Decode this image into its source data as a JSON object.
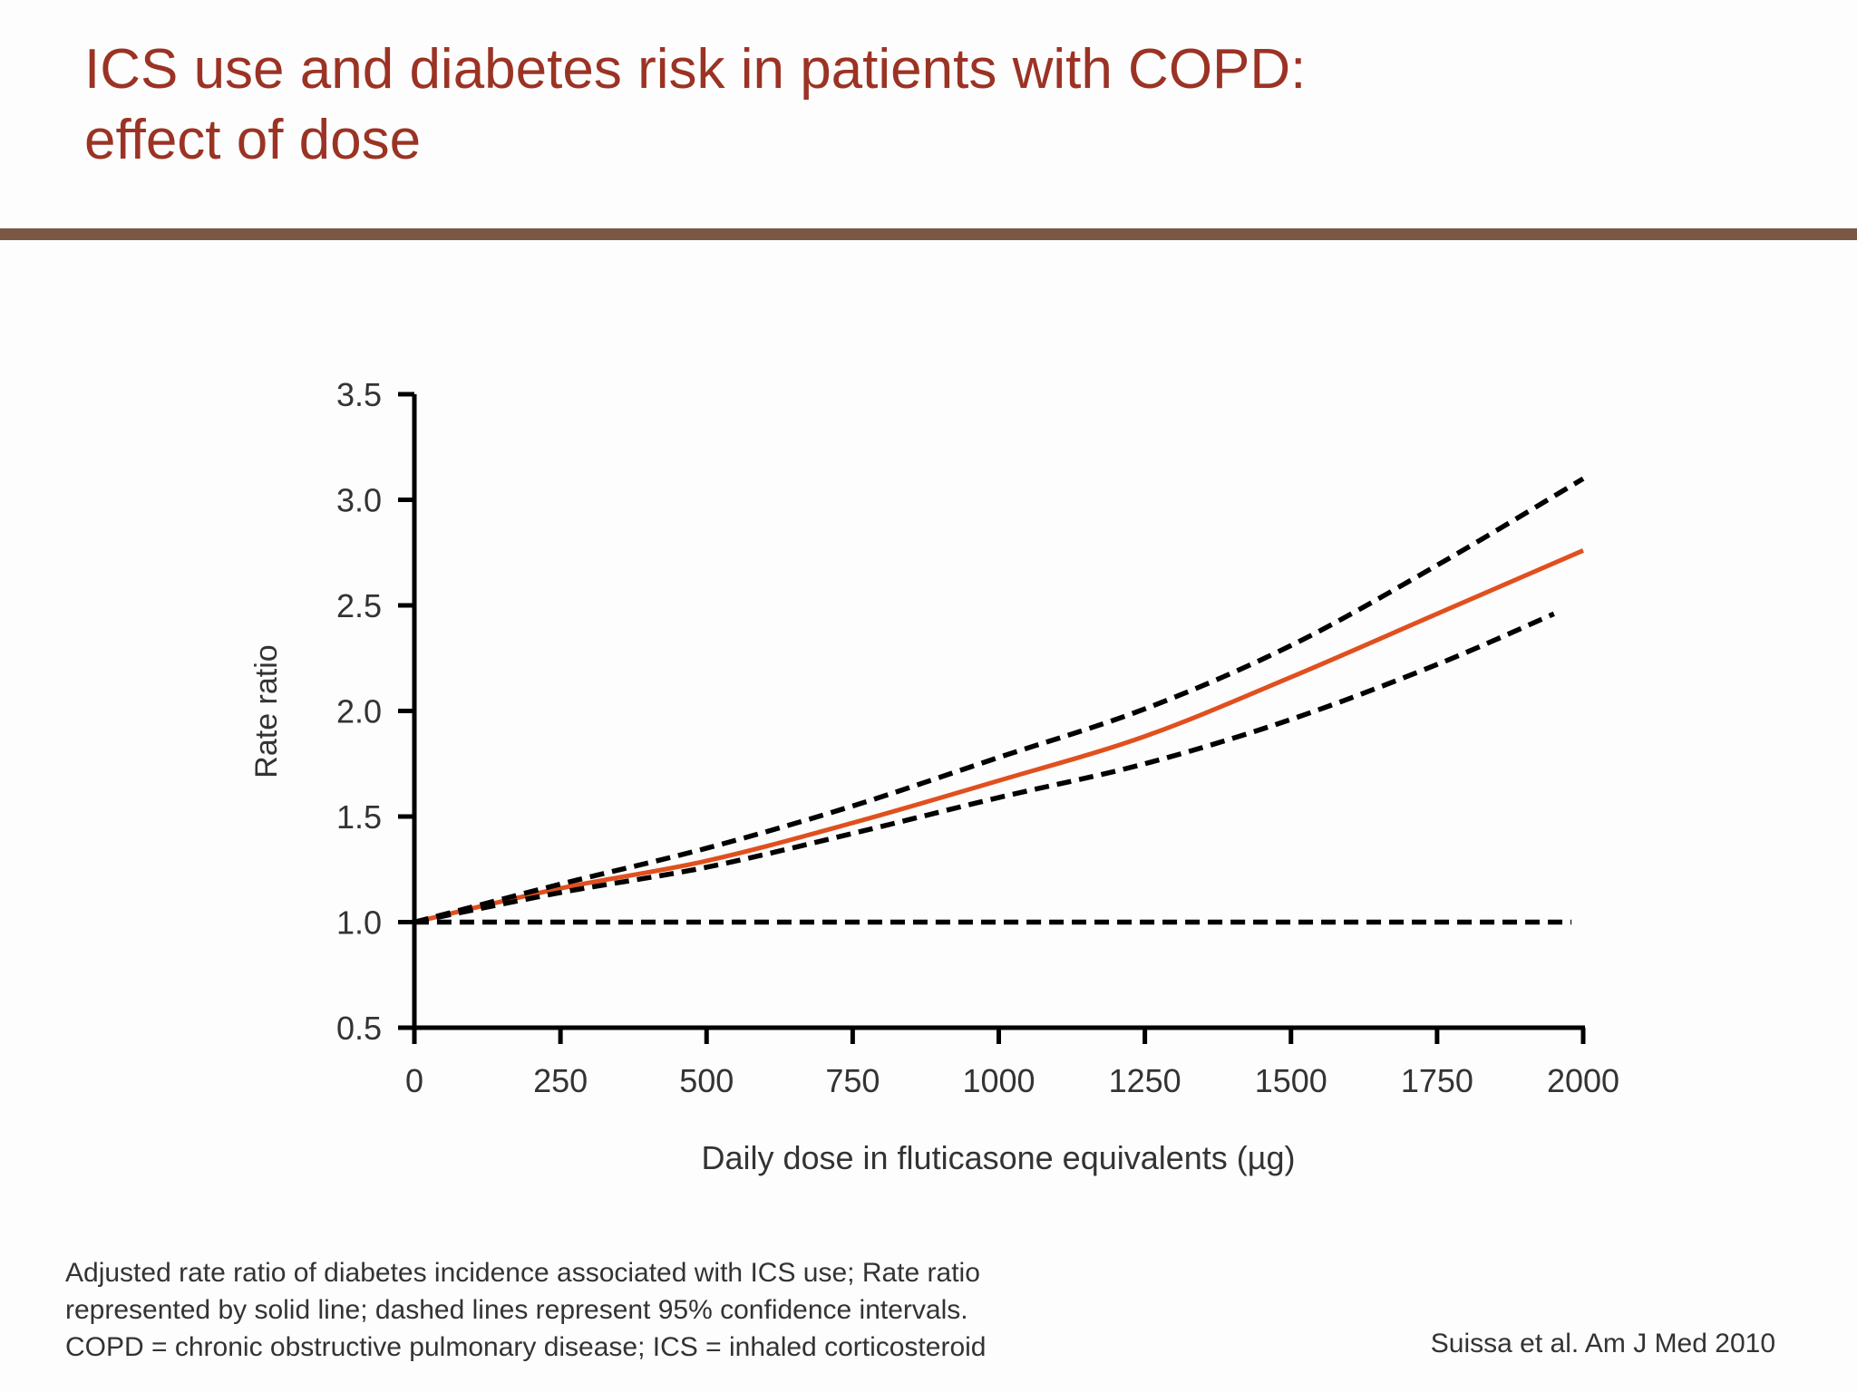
{
  "slide": {
    "title_line1": "ICS use and diabetes risk in patients with COPD:",
    "title_line2": "effect of dose",
    "footnote_line1": "Adjusted rate ratio of diabetes incidence associated with ICS use; Rate ratio",
    "footnote_line2": "represented by solid line; dashed lines represent 95% confidence intervals.",
    "footnote_line3": "COPD = chronic obstructive pulmonary disease; ICS = inhaled corticosteroid",
    "citation": "Suissa et al. Am J Med 2010",
    "title_color": "#9b3324",
    "rule_color": "#7a5843"
  },
  "chart_data": {
    "type": "line",
    "title": "",
    "xlabel": "Daily dose in fluticasone equivalents (µg)",
    "ylabel": "Rate ratio",
    "xlim": [
      0,
      2000
    ],
    "ylim": [
      0.5,
      3.5
    ],
    "xticks": [
      "0",
      "250",
      "500",
      "750",
      "1000",
      "1250",
      "1500",
      "1750",
      "2000"
    ],
    "yticks": [
      "0.5",
      "1.0",
      "1.5",
      "2.0",
      "2.5",
      "3.0",
      "3.5"
    ],
    "grid": false,
    "series": [
      {
        "style": "solid",
        "color": "#e0501e",
        "x": [
          0,
          250,
          500,
          750,
          1000,
          1250,
          1500,
          1750,
          2000
        ],
        "y": [
          1.0,
          1.16,
          1.29,
          1.47,
          1.67,
          1.88,
          2.16,
          2.46,
          2.76
        ]
      },
      {
        "style": "dashed",
        "color": "#000000",
        "x": [
          0,
          250,
          500,
          750,
          1000,
          1250,
          1500,
          1750,
          2000
        ],
        "y": [
          1.0,
          1.18,
          1.35,
          1.55,
          1.78,
          2.01,
          2.31,
          2.69,
          3.1
        ]
      },
      {
        "style": "dashed",
        "color": "#000000",
        "x": [
          0,
          250,
          500,
          750,
          1000,
          1250,
          1500,
          1750,
          1950
        ],
        "y": [
          1.0,
          1.14,
          1.26,
          1.42,
          1.59,
          1.75,
          1.96,
          2.22,
          2.46
        ]
      },
      {
        "style": "dashed",
        "color": "#000000",
        "x": [
          0,
          1980
        ],
        "y": [
          1.0,
          1.0
        ]
      }
    ]
  }
}
